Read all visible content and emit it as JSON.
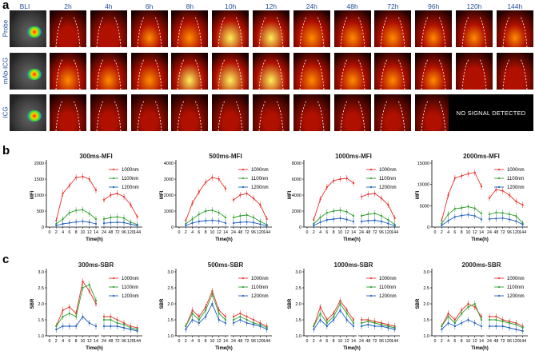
{
  "panels": {
    "a": "a",
    "b": "b",
    "c": "c"
  },
  "imaging": {
    "bli_label": "BLI",
    "time_points": [
      "2h",
      "4h",
      "6h",
      "8h",
      "10h",
      "12h",
      "24h",
      "48h",
      "72h",
      "96h",
      "120h",
      "144h"
    ],
    "rows": [
      "Probe",
      "mAb-ICG",
      "ICG"
    ],
    "no_signal_text": "NO SIGNAL DETECTED",
    "intensity": [
      [
        0.35,
        0.45,
        0.6,
        0.75,
        0.9,
        0.85,
        0.8,
        0.7,
        0.72,
        0.55,
        0.6,
        0.55
      ],
      [
        0.75,
        0.72,
        0.78,
        0.85,
        0.95,
        0.9,
        0.75,
        0.7,
        0.68,
        0.6,
        0.5,
        0.45
      ],
      [
        0.25,
        0.22,
        0.22,
        0.2,
        0.2,
        0.2,
        0.2,
        0.18,
        0.15,
        0.15,
        null,
        null
      ]
    ],
    "colors": {
      "low": "#1a0000",
      "mid": "#b01000",
      "high": "#ff8c00",
      "hot": "#ffef5a"
    }
  },
  "chart_data": [
    {
      "type": "line",
      "title": "300ms-MFI",
      "ylabel": "MFI",
      "xlabel": "Time(h)",
      "ylim": [
        0,
        2000
      ],
      "yticks": [
        "0",
        "500",
        "1000",
        "1500",
        "2000"
      ],
      "xticks": [
        "0",
        "2",
        "4",
        "6",
        "8",
        "10",
        "12",
        "14",
        "24",
        "48",
        "72",
        "96",
        "120",
        "144"
      ],
      "series": [
        {
          "name": "1000nm",
          "color": "#e8302a",
          "a": [
            200,
            1050,
            1300,
            1550,
            1580,
            1500,
            1150
          ],
          "b": [
            850,
            1000,
            1050,
            950,
            700,
            320
          ]
        },
        {
          "name": "1100nm",
          "color": "#2ca02c",
          "a": [
            100,
            250,
            450,
            520,
            540,
            420,
            250
          ],
          "b": [
            250,
            300,
            320,
            280,
            150,
            80
          ]
        },
        {
          "name": "1200nm",
          "color": "#1f5fbf",
          "a": [
            50,
            100,
            130,
            160,
            180,
            150,
            100
          ],
          "b": [
            120,
            140,
            150,
            140,
            90,
            50
          ]
        }
      ]
    },
    {
      "type": "line",
      "title": "500ms-MFI",
      "ylabel": "MFI",
      "xlabel": "Time(h)",
      "ylim": [
        0,
        4000
      ],
      "yticks": [
        "0",
        "1000",
        "2000",
        "3000",
        "4000"
      ],
      "xticks": [
        "0",
        "2",
        "4",
        "6",
        "8",
        "10",
        "12",
        "14",
        "24",
        "48",
        "72",
        "96",
        "120",
        "144"
      ],
      "series": [
        {
          "name": "1000nm",
          "color": "#e8302a",
          "a": [
            400,
            1500,
            2200,
            2800,
            3100,
            3000,
            2400
          ],
          "b": [
            1700,
            2000,
            2100,
            1800,
            1400,
            500
          ]
        },
        {
          "name": "1100nm",
          "color": "#2ca02c",
          "a": [
            200,
            500,
            800,
            1000,
            1050,
            900,
            600
          ],
          "b": [
            600,
            700,
            750,
            600,
            350,
            150
          ]
        },
        {
          "name": "1200nm",
          "color": "#1f5fbf",
          "a": [
            100,
            250,
            350,
            400,
            420,
            380,
            250
          ],
          "b": [
            250,
            300,
            320,
            280,
            180,
            80
          ]
        }
      ]
    },
    {
      "type": "line",
      "title": "1000ms-MFI",
      "ylabel": "MFI",
      "xlabel": "Time(h)",
      "ylim": [
        0,
        8000
      ],
      "yticks": [
        "0",
        "2000",
        "4000",
        "6000",
        "8000"
      ],
      "xticks": [
        "0",
        "2",
        "4",
        "6",
        "8",
        "10",
        "12",
        "14",
        "24",
        "48",
        "72",
        "96",
        "120",
        "144"
      ],
      "series": [
        {
          "name": "1000nm",
          "color": "#e8302a",
          "a": [
            900,
            3500,
            5000,
            5800,
            6000,
            6100,
            5500
          ],
          "b": [
            3800,
            4100,
            4200,
            3600,
            2800,
            1100
          ]
        },
        {
          "name": "1100nm",
          "color": "#2ca02c",
          "a": [
            400,
            1200,
            1800,
            2000,
            2100,
            1900,
            1400
          ],
          "b": [
            1400,
            1600,
            1700,
            1400,
            900,
            300
          ]
        },
        {
          "name": "1200nm",
          "color": "#1f5fbf",
          "a": [
            200,
            600,
            900,
            1000,
            1100,
            950,
            700
          ],
          "b": [
            700,
            800,
            850,
            700,
            450,
            150
          ]
        }
      ]
    },
    {
      "type": "line",
      "title": "2000ms-MFI",
      "ylabel": "MFI",
      "xlabel": "Time(h)",
      "ylim": [
        0,
        15000
      ],
      "yticks": [
        "0",
        "5000",
        "10000",
        "15000"
      ],
      "xticks": [
        "0",
        "2",
        "4",
        "6",
        "8",
        "10",
        "12",
        "14",
        "24",
        "48",
        "72",
        "96",
        "120",
        "144"
      ],
      "series": [
        {
          "name": "1000nm",
          "color": "#e8302a",
          "a": [
            1500,
            7500,
            11500,
            12000,
            12500,
            12800,
            9500
          ],
          "b": [
            6800,
            8800,
            8500,
            7500,
            6000,
            5200
          ]
        },
        {
          "name": "1100nm",
          "color": "#2ca02c",
          "a": [
            800,
            3000,
            4300,
            4500,
            4800,
            4400,
            3200
          ],
          "b": [
            3000,
            3400,
            3300,
            3000,
            2600,
            900
          ]
        },
        {
          "name": "1200nm",
          "color": "#1f5fbf",
          "a": [
            400,
            1500,
            2400,
            2700,
            2900,
            2600,
            1800
          ],
          "b": [
            1900,
            2000,
            2100,
            1800,
            1400,
            600
          ]
        }
      ]
    },
    {
      "type": "line",
      "title": "300ms-SBR",
      "ylabel": "SBR",
      "xlabel": "Time(h)",
      "ylim": [
        1.0,
        3.0
      ],
      "yticks": [
        "1.0",
        "1.5",
        "2.0",
        "2.5",
        "3.0"
      ],
      "xticks": [
        "0",
        "2",
        "4",
        "6",
        "8",
        "10",
        "12",
        "14",
        "24",
        "48",
        "72",
        "96",
        "120",
        "144"
      ],
      "series": [
        {
          "name": "1000nm",
          "color": "#e8302a",
          "a": [
            1.3,
            1.8,
            1.9,
            1.7,
            2.7,
            2.4,
            2.0
          ],
          "b": [
            1.6,
            1.6,
            1.5,
            1.4,
            1.3,
            1.25
          ]
        },
        {
          "name": "1100nm",
          "color": "#2ca02c",
          "a": [
            1.3,
            1.6,
            1.7,
            1.6,
            2.5,
            2.6,
            2.1
          ],
          "b": [
            1.5,
            1.5,
            1.4,
            1.35,
            1.25,
            1.2
          ]
        },
        {
          "name": "1200nm",
          "color": "#1f5fbf",
          "a": [
            1.2,
            1.3,
            1.3,
            1.3,
            1.6,
            1.4,
            1.3
          ],
          "b": [
            1.3,
            1.3,
            1.3,
            1.25,
            1.2,
            1.15
          ]
        }
      ]
    },
    {
      "type": "line",
      "title": "500ms-SBR",
      "ylabel": "SBR",
      "xlabel": "Time(h)",
      "ylim": [
        1.0,
        3.0
      ],
      "yticks": [
        "1.0",
        "1.5",
        "2.0",
        "2.5",
        "3.0"
      ],
      "xticks": [
        "0",
        "2",
        "4",
        "6",
        "8",
        "10",
        "12",
        "14",
        "24",
        "48",
        "72",
        "96",
        "120",
        "144"
      ],
      "series": [
        {
          "name": "1000nm",
          "color": "#e8302a",
          "a": [
            1.3,
            1.8,
            1.6,
            1.9,
            2.4,
            1.8,
            1.6
          ],
          "b": [
            1.6,
            1.7,
            1.6,
            1.5,
            1.4,
            1.3
          ]
        },
        {
          "name": "1100nm",
          "color": "#2ca02c",
          "a": [
            1.3,
            1.7,
            1.5,
            1.8,
            2.3,
            1.7,
            1.5
          ],
          "b": [
            1.5,
            1.6,
            1.5,
            1.4,
            1.35,
            1.25
          ]
        },
        {
          "name": "1200nm",
          "color": "#1f5fbf",
          "a": [
            1.2,
            1.5,
            1.4,
            1.6,
            2.0,
            1.5,
            1.4
          ],
          "b": [
            1.4,
            1.5,
            1.4,
            1.35,
            1.3,
            1.2
          ]
        }
      ]
    },
    {
      "type": "line",
      "title": "1000ms-SBR",
      "ylabel": "SBR",
      "xlabel": "Time(h)",
      "ylim": [
        1.0,
        3.0
      ],
      "yticks": [
        "1.0",
        "1.5",
        "2.0",
        "2.5",
        "3.0"
      ],
      "xticks": [
        "0",
        "2",
        "4",
        "6",
        "8",
        "10",
        "12",
        "14",
        "24",
        "48",
        "72",
        "96",
        "120",
        "144"
      ],
      "series": [
        {
          "name": "1000nm",
          "color": "#e8302a",
          "a": [
            1.3,
            1.9,
            1.5,
            1.7,
            2.1,
            1.8,
            1.5
          ],
          "b": [
            1.5,
            1.5,
            1.45,
            1.4,
            1.35,
            1.3
          ]
        },
        {
          "name": "1100nm",
          "color": "#2ca02c",
          "a": [
            1.3,
            1.7,
            1.4,
            1.6,
            2.0,
            1.7,
            1.4
          ],
          "b": [
            1.4,
            1.45,
            1.4,
            1.35,
            1.3,
            1.25
          ]
        },
        {
          "name": "1200nm",
          "color": "#1f5fbf",
          "a": [
            1.2,
            1.5,
            1.3,
            1.5,
            1.8,
            1.5,
            1.3
          ],
          "b": [
            1.3,
            1.35,
            1.3,
            1.3,
            1.25,
            1.2
          ]
        }
      ]
    },
    {
      "type": "line",
      "title": "2000ms-SBR",
      "ylabel": "SBR",
      "xlabel": "Time(h)",
      "ylim": [
        1.0,
        3.0
      ],
      "yticks": [
        "1.0",
        "1.5",
        "2.0",
        "2.5",
        "3.0"
      ],
      "xticks": [
        "0",
        "2",
        "4",
        "6",
        "8",
        "10",
        "12",
        "14",
        "24",
        "48",
        "72",
        "96",
        "120",
        "144"
      ],
      "series": [
        {
          "name": "1000nm",
          "color": "#e8302a",
          "a": [
            1.3,
            1.7,
            1.5,
            1.8,
            2.0,
            1.9,
            1.6
          ],
          "b": [
            1.6,
            1.6,
            1.5,
            1.45,
            1.4,
            1.3
          ]
        },
        {
          "name": "1100nm",
          "color": "#2ca02c",
          "a": [
            1.3,
            1.6,
            1.4,
            1.7,
            1.9,
            2.0,
            1.5
          ],
          "b": [
            1.5,
            1.5,
            1.45,
            1.4,
            1.35,
            1.25
          ]
        },
        {
          "name": "1200nm",
          "color": "#1f5fbf",
          "a": [
            1.2,
            1.4,
            1.3,
            1.4,
            1.5,
            1.4,
            1.3
          ],
          "b": [
            1.3,
            1.3,
            1.3,
            1.25,
            1.2,
            1.15
          ]
        }
      ]
    }
  ]
}
